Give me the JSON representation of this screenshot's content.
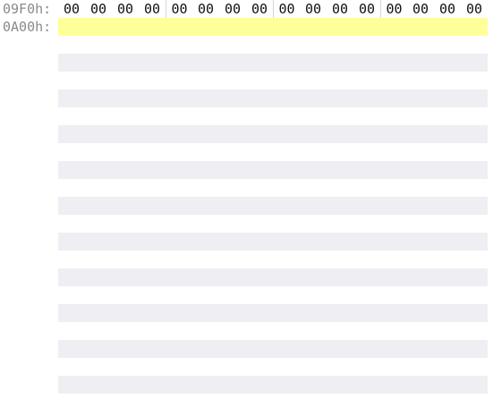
{
  "hex_view": {
    "rows": [
      {
        "offset": "09F0h:",
        "bytes": [
          "00",
          "00",
          "00",
          "00",
          "00",
          "00",
          "00",
          "00",
          "00",
          "00",
          "00",
          "00",
          "00",
          "00",
          "00",
          "00"
        ]
      },
      {
        "offset": "0A00h:",
        "bytes": []
      }
    ],
    "colors": {
      "offset_text": "#8a8a8a",
      "current_row_highlight": "#ffff99",
      "alternate_row_band": "#efeef3",
      "group_separator": "#d6d6d6"
    }
  }
}
